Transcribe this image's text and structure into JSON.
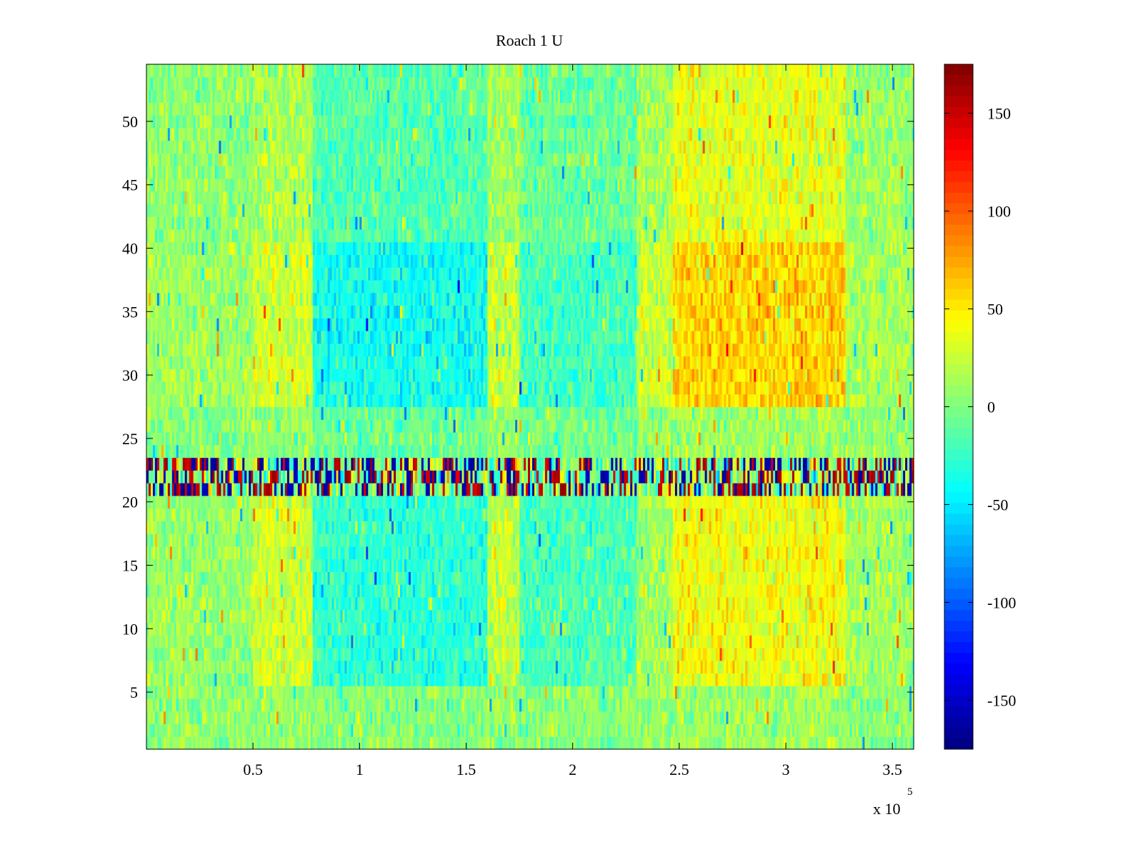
{
  "chart_data": {
    "type": "heatmap",
    "title": "Roach 1 U",
    "xlabel": "",
    "ylabel": "",
    "x_exponent_label": "x 10",
    "x_exponent_power": "5",
    "xlim": [
      0,
      3.6
    ],
    "ylim": [
      0.5,
      54.5
    ],
    "x_ticks": [
      0.5,
      1,
      1.5,
      2,
      2.5,
      3,
      3.5
    ],
    "x_tick_labels": [
      "0.5",
      "1",
      "1.5",
      "2",
      "2.5",
      "3",
      "3.5"
    ],
    "y_ticks": [
      5,
      10,
      15,
      20,
      25,
      30,
      35,
      40,
      45,
      50
    ],
    "y_tick_labels": [
      "5",
      "10",
      "15",
      "20",
      "25",
      "30",
      "35",
      "40",
      "45",
      "50"
    ],
    "grid": false,
    "colormap": "jet",
    "clim": [
      -175,
      175
    ],
    "colorbar": {
      "position": "right",
      "ticks": [
        150,
        100,
        50,
        0,
        -50,
        -100,
        -150
      ],
      "tick_labels": [
        "150",
        "100",
        "50",
        "0",
        "-50",
        "-100",
        "-150"
      ]
    },
    "rows": 54,
    "columns_approx": 360,
    "approximate_region_means": {
      "x_segments": [
        [
          0,
          0.5
        ],
        [
          0.5,
          0.78
        ],
        [
          0.78,
          1.6
        ],
        [
          1.6,
          1.75
        ],
        [
          1.75,
          2.3
        ],
        [
          2.3,
          2.47
        ],
        [
          2.47,
          3.28
        ],
        [
          3.28,
          3.6
        ]
      ],
      "row_band_rows_1_to_5": [
        5,
        8,
        2,
        6,
        3,
        8,
        12,
        4
      ],
      "row_band_rows_6_to_20": [
        8,
        28,
        -28,
        22,
        -18,
        14,
        40,
        12
      ],
      "row_band_rows_21_to_23": [
        0,
        0,
        0,
        0,
        0,
        0,
        0,
        0
      ],
      "row_band_rows_24_to_27": [
        0,
        5,
        -10,
        5,
        -5,
        8,
        12,
        6
      ],
      "row_band_rows_28_to_40": [
        10,
        28,
        -38,
        24,
        -22,
        24,
        58,
        14
      ],
      "row_band_rows_41_to_54": [
        5,
        16,
        -15,
        10,
        -8,
        14,
        34,
        8
      ],
      "rows_21_to_23_note": "high-variance stripe, values swing between about -170 and 170"
    },
    "colors": {
      "background": "#ffffff",
      "axis": "#000000"
    }
  }
}
